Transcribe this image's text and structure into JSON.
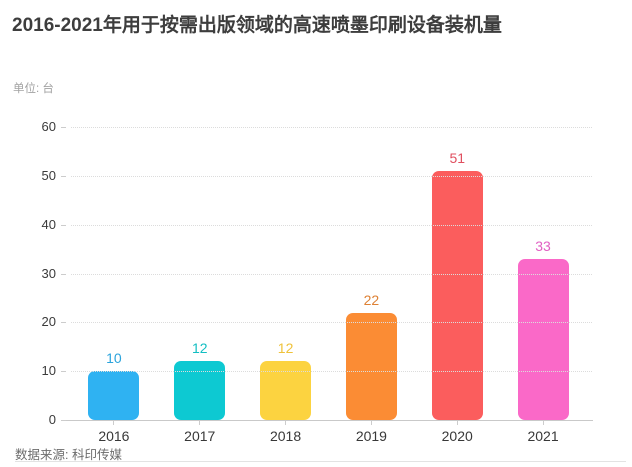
{
  "header": {
    "title": "2016-2021年用于按需出版领域的高速喷墨印刷设备装机量",
    "unit_label": "单位: 台"
  },
  "footer": {
    "source": "数据来源: 科印传媒"
  },
  "chart_data": {
    "type": "bar",
    "title": "2016-2021年用于按需出版领域的高速喷墨印刷设备装机量",
    "subtitle": "单位: 台",
    "categories": [
      "2016",
      "2017",
      "2018",
      "2019",
      "2020",
      "2021"
    ],
    "values": [
      10,
      12,
      12,
      22,
      51,
      33
    ],
    "bar_colors": [
      "#2FB2F2",
      "#0DC9D2",
      "#FCD340",
      "#FB8C34",
      "#FB5D5D",
      "#FA69C8"
    ],
    "label_colors": [
      "#2AA3DC",
      "#12BEC2",
      "#EFC23A",
      "#DE8134",
      "#E04F5F",
      "#E160C3"
    ],
    "xlabel": "",
    "ylabel": "单位: 台",
    "ylim": [
      0,
      60
    ],
    "ytick_interval": 10,
    "yticks": [
      0,
      10,
      20,
      30,
      40,
      50,
      60
    ],
    "grid": "horizontal dotted",
    "legend": "none",
    "source": "数据来源: 科印传媒"
  }
}
